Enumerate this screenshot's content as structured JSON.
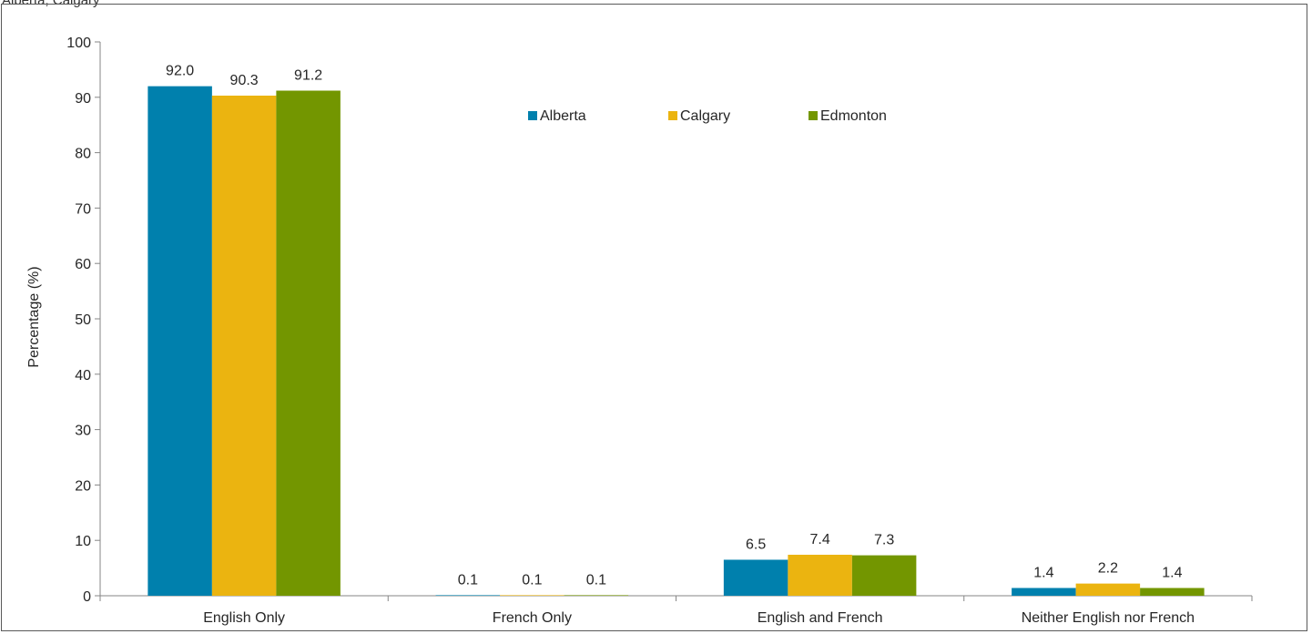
{
  "top_caption": "Alberta, Calgary",
  "chart_data": {
    "type": "bar",
    "categories": [
      "English Only",
      "French Only",
      "English and French",
      "Neither English nor French"
    ],
    "series": [
      {
        "name": "Alberta",
        "color": "#0080AD",
        "values": [
          92.0,
          0.1,
          6.5,
          1.4
        ],
        "labels": [
          "92.0",
          "0.1",
          "6.5",
          "1.4"
        ]
      },
      {
        "name": "Calgary",
        "color": "#EBB410",
        "values": [
          90.3,
          0.1,
          7.4,
          2.2
        ],
        "labels": [
          "90.3",
          "0.1",
          "7.4",
          "2.2"
        ]
      },
      {
        "name": "Edmonton",
        "color": "#739600",
        "values": [
          91.2,
          0.1,
          7.3,
          1.4
        ],
        "labels": [
          "91.2",
          "0.1",
          "7.3",
          "1.4"
        ]
      }
    ],
    "ylabel": "Percentage (%)",
    "xlabel": "",
    "ylim": [
      0,
      100
    ],
    "yticks": [
      "0",
      "10",
      "20",
      "30",
      "40",
      "50",
      "60",
      "70",
      "80",
      "90",
      "100"
    ],
    "grid": false,
    "legend_position": "top-center"
  }
}
